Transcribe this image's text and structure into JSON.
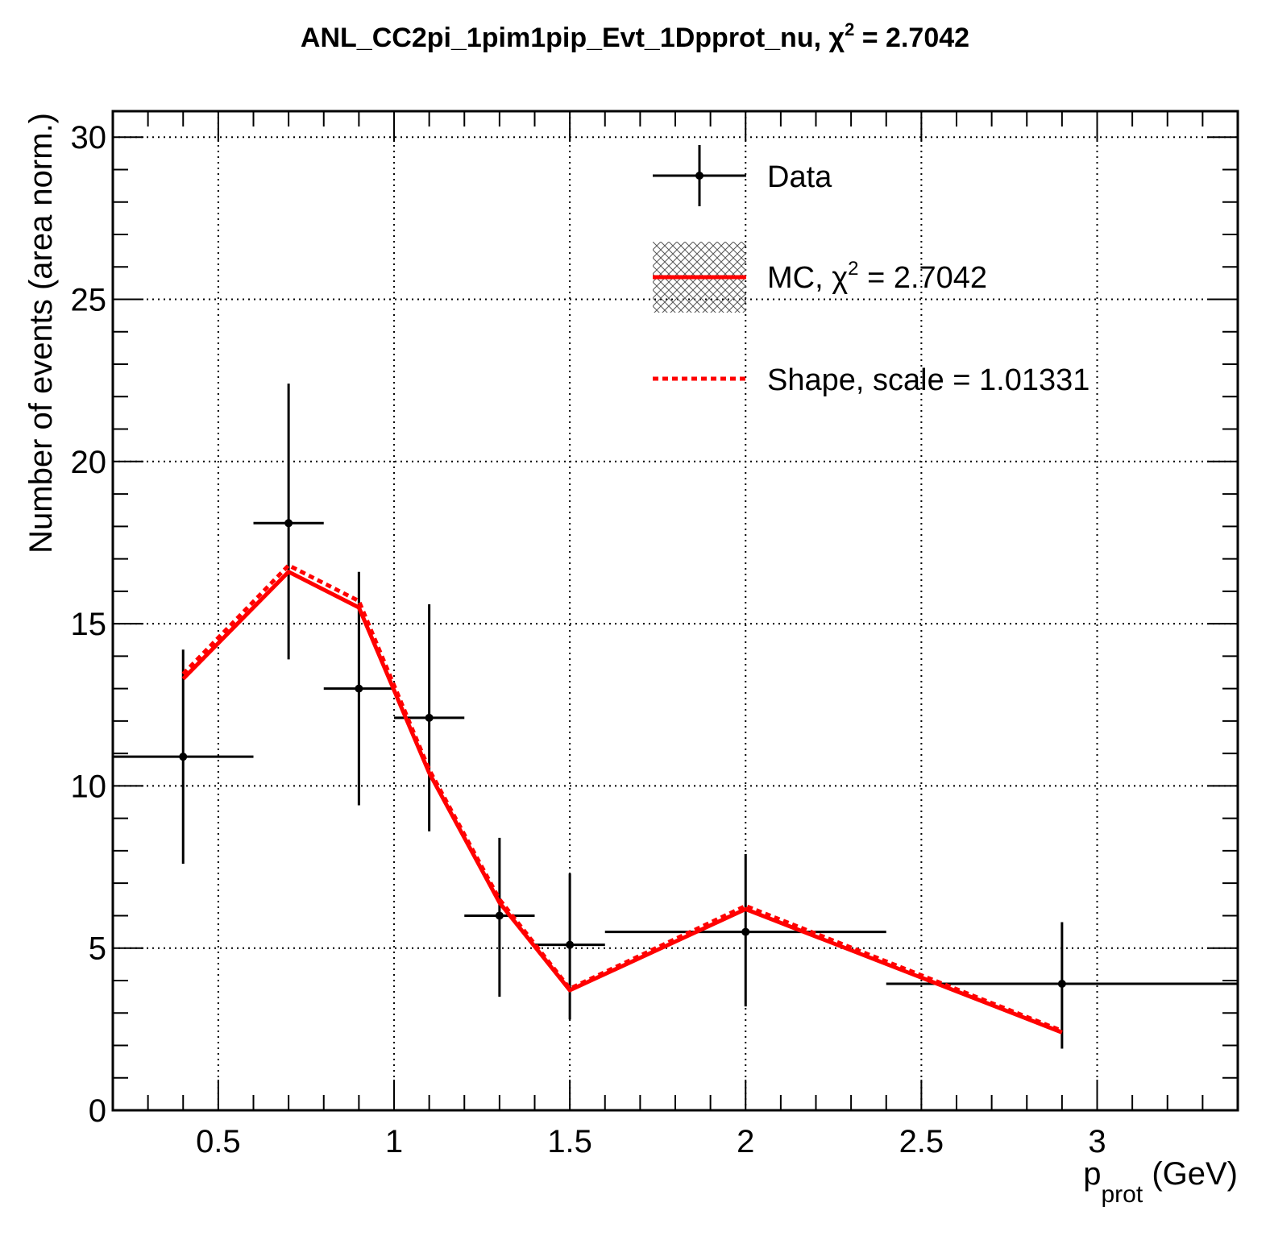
{
  "chart_data": {
    "type": "line",
    "title_main": "ANL_CC2pi_1pim1pip_Evt_1Dpprot_nu, ",
    "title_chi": "χ",
    "title_sup": "2",
    "title_rest": " = 2.7042",
    "xlabel_main": "p",
    "xlabel_sub": "prot",
    "xlabel_unit": " (GeV)",
    "ylabel": "Number of events (area norm.)",
    "xlim": [
      0.2,
      3.4
    ],
    "ylim": [
      0,
      30.8
    ],
    "grid": true,
    "legend_position": "top-right",
    "x_ticks": [
      {
        "value": 0.5,
        "label": "0.5"
      },
      {
        "value": 1.0,
        "label": "1"
      },
      {
        "value": 1.5,
        "label": "1.5"
      },
      {
        "value": 2.0,
        "label": "2"
      },
      {
        "value": 2.5,
        "label": "2.5"
      },
      {
        "value": 3.0,
        "label": "3"
      }
    ],
    "y_ticks": [
      {
        "value": 0,
        "label": "0"
      },
      {
        "value": 5,
        "label": "5"
      },
      {
        "value": 10,
        "label": "10"
      },
      {
        "value": 15,
        "label": "15"
      },
      {
        "value": 20,
        "label": "20"
      },
      {
        "value": 25,
        "label": "25"
      },
      {
        "value": 30,
        "label": "30"
      }
    ],
    "data": {
      "name": "Data",
      "points": [
        {
          "x": 0.4,
          "xlo": 0.2,
          "xhi": 0.6,
          "y": 10.9,
          "ylo": 7.6,
          "yhi": 14.2
        },
        {
          "x": 0.7,
          "xlo": 0.6,
          "xhi": 0.8,
          "y": 18.1,
          "ylo": 13.9,
          "yhi": 22.4
        },
        {
          "x": 0.9,
          "xlo": 0.8,
          "xhi": 1.0,
          "y": 13.0,
          "ylo": 9.4,
          "yhi": 16.6
        },
        {
          "x": 1.1,
          "xlo": 1.0,
          "xhi": 1.2,
          "y": 12.1,
          "ylo": 8.6,
          "yhi": 15.6
        },
        {
          "x": 1.3,
          "xlo": 1.2,
          "xhi": 1.4,
          "y": 6.0,
          "ylo": 3.5,
          "yhi": 8.4
        },
        {
          "x": 1.5,
          "xlo": 1.4,
          "xhi": 1.6,
          "y": 5.1,
          "ylo": 2.8,
          "yhi": 7.3
        },
        {
          "x": 2.0,
          "xlo": 1.6,
          "xhi": 2.4,
          "y": 5.5,
          "ylo": 3.2,
          "yhi": 7.9
        },
        {
          "x": 2.9,
          "xlo": 2.4,
          "xhi": 3.4,
          "y": 3.9,
          "ylo": 1.9,
          "yhi": 5.8
        }
      ]
    },
    "series": [
      {
        "name": "MC",
        "color": "#ff0000",
        "style": "solid",
        "x": [
          0.4,
          0.7,
          0.9,
          1.1,
          1.3,
          1.5,
          2.0,
          2.9
        ],
        "y": [
          13.3,
          16.6,
          15.5,
          10.4,
          6.4,
          3.7,
          6.2,
          2.4
        ]
      },
      {
        "name": "Shape",
        "color": "#ff0000",
        "style": "dotted",
        "x": [
          0.4,
          0.7,
          0.9,
          1.1,
          1.3,
          1.5,
          2.0,
          2.9
        ],
        "y": [
          13.45,
          16.8,
          15.7,
          10.5,
          6.5,
          3.75,
          6.3,
          2.45
        ]
      }
    ],
    "legend": {
      "data_label": "Data",
      "mc_label_pre": "MC, ",
      "mc_chi": "χ",
      "mc_sup": "2",
      "mc_label_post": " = 2.7042",
      "shape_label": "Shape, scale = 1.01331"
    }
  }
}
